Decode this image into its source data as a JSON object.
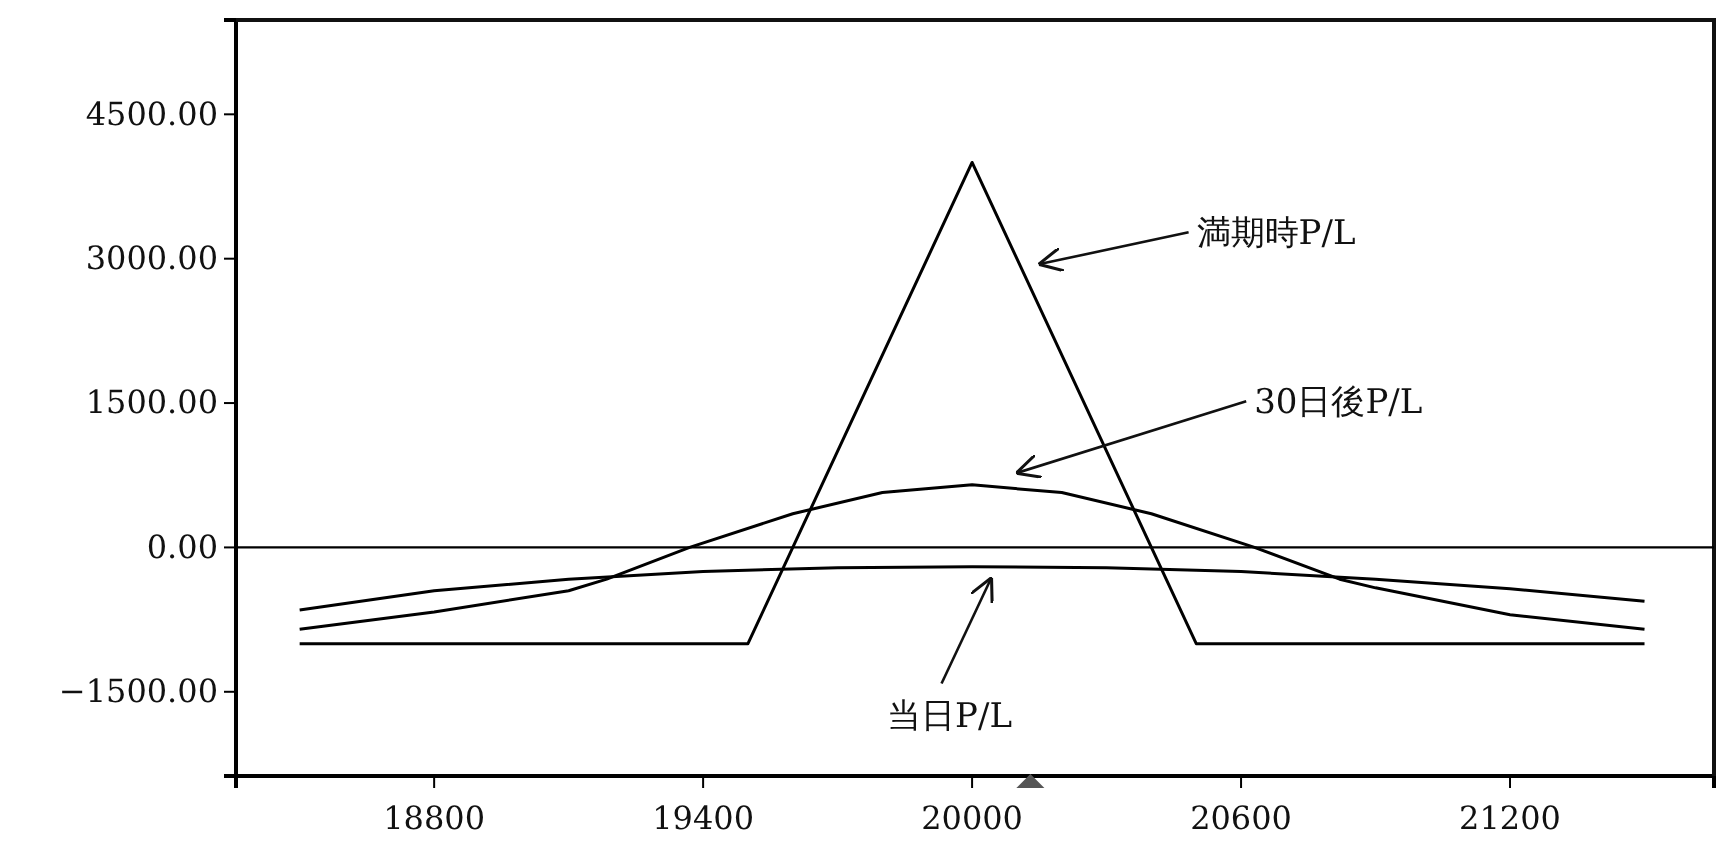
{
  "chart_data": {
    "type": "line",
    "series": [
      {
        "color": "#000000",
        "x": [
          18500,
          19500,
          20000,
          20500,
          21500
        ],
        "values": [
          -1000,
          -1000,
          4000,
          -1000,
          -1000
        ]
      },
      {
        "color": "#000000",
        "x": [
          18500,
          18800,
          19100,
          19185,
          19370,
          19600,
          19800,
          20000,
          20200,
          20400,
          20630,
          20820,
          20900,
          21200,
          21500
        ],
        "values": [
          -850,
          -670,
          -450,
          -330,
          0,
          350,
          570,
          650,
          570,
          350,
          0,
          -330,
          -420,
          -700,
          -850
        ]
      },
      {
        "color": "#000000",
        "x": [
          18500,
          18800,
          19100,
          19400,
          19700,
          20000,
          20300,
          20600,
          20900,
          21200,
          21500
        ],
        "values": [
          -650,
          -450,
          -330,
          -250,
          -210,
          -200,
          -210,
          -250,
          -330,
          -430,
          -560
        ]
      }
    ],
    "xlim": [
      18358,
      21655
    ],
    "ylim": [
      -2375,
      5480
    ],
    "xticks": [
      18800,
      19400,
      20000,
      20600,
      21200
    ],
    "yticks": [
      {
        "value": -1500,
        "label": "−1500.00"
      },
      {
        "value": 0,
        "label": "0.00"
      },
      {
        "value": 1500,
        "label": "1500.00"
      },
      {
        "value": 3000,
        "label": "3000.00"
      },
      {
        "value": 4500,
        "label": "4500.00"
      }
    ],
    "ref_lines": [
      {
        "axis": "y",
        "value": 0,
        "color": "#000000"
      }
    ],
    "annotations": [
      {
        "text": "満期時P/L",
        "x": 20135,
        "y": 2900
      },
      {
        "text": "30日後P/L",
        "x": 20085,
        "y": 730
      },
      {
        "text": "当日P/L",
        "x": 20030,
        "y": -250
      }
    ],
    "grid": false,
    "marker": "none",
    "line_style": "solid"
  }
}
